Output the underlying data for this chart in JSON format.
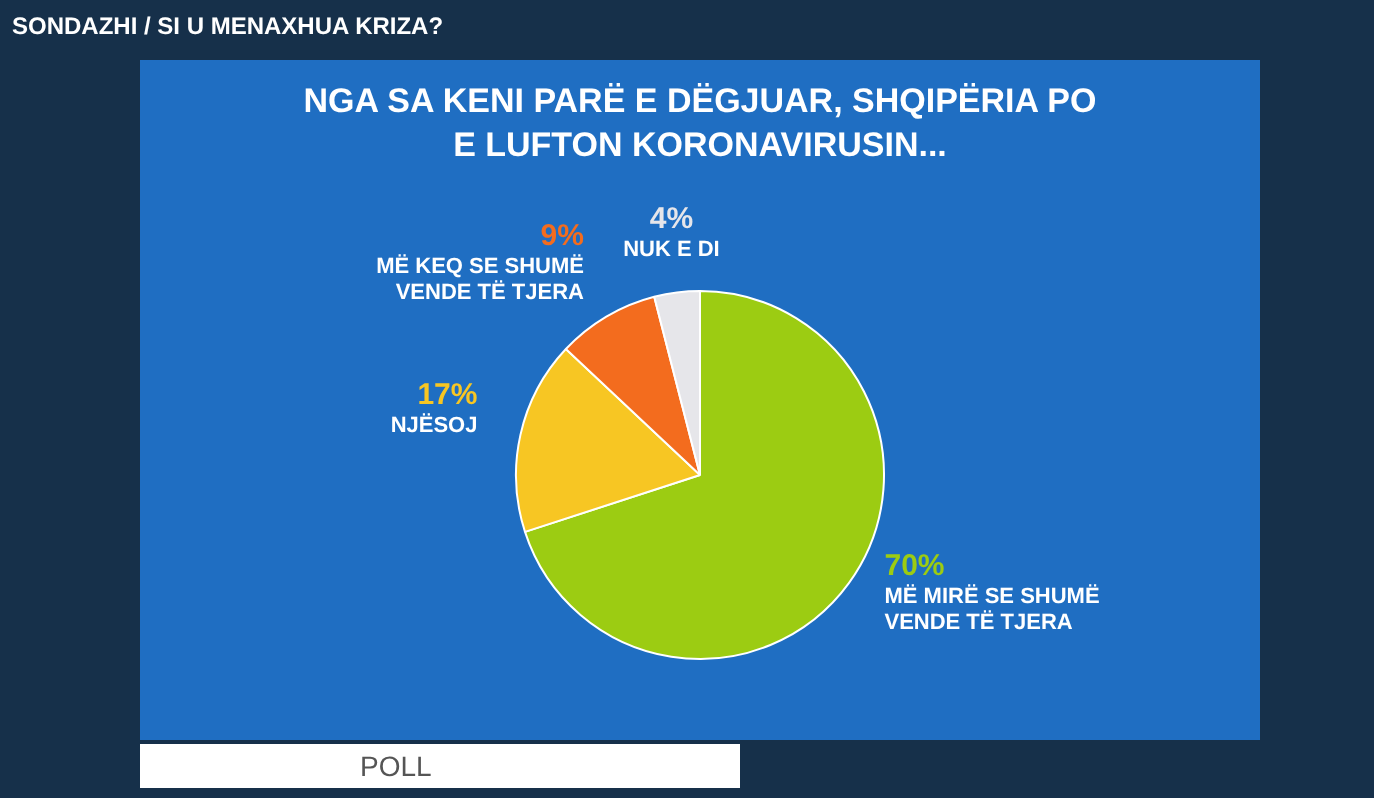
{
  "chart_data": {
    "type": "pie",
    "subtitle": "SONDAZHI / SI U MENAXHUA KRIZA?",
    "title": "NGA SA KENI PARË E DËGJUAR, SHQIPËRIA PO E LUFTON KORONAVIRUSIN...",
    "categories": [
      "MË MIRË SE SHUMË VENDE TË TJERA",
      "NJËSOJ",
      "MË KEQ SE SHUMË VENDE TË TJERA",
      "NUK E DI"
    ],
    "values": [
      70,
      17,
      9,
      4
    ],
    "colors": [
      "#9ccc12",
      "#f7c623",
      "#f36c1e",
      "#e6e6ea"
    ],
    "value_labels": [
      "70%",
      "17%",
      "9%",
      "4%"
    ],
    "legend": false,
    "annotations": [
      "POLL"
    ]
  }
}
